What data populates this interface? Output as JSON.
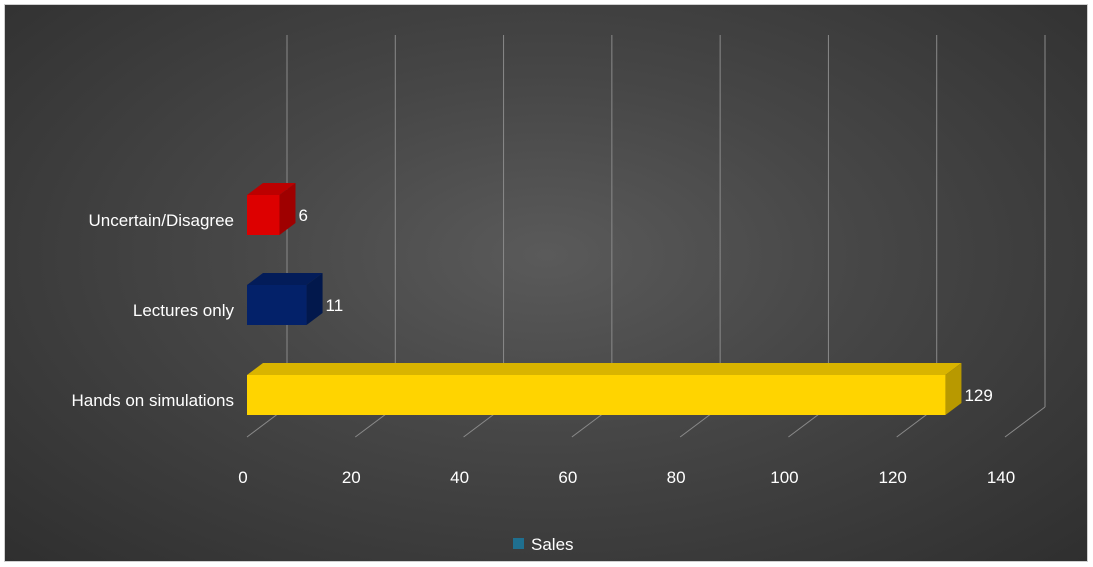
{
  "chart_data": {
    "type": "bar",
    "orientation": "horizontal",
    "categories": [
      "Hands on simulations",
      "Lectures only",
      "Uncertain/Disagree"
    ],
    "series": [
      {
        "name": "Sales",
        "values": [
          129,
          11,
          6
        ]
      }
    ],
    "xlim": [
      0,
      140
    ],
    "ticks": [
      "0",
      "20",
      "40",
      "60",
      "80",
      "100",
      "120",
      "140"
    ],
    "bar_colors": [
      "#ffd400",
      "#032169",
      "#dd0000"
    ],
    "legend_color": "#1f6f8f",
    "gridlines": true,
    "legend_position": "bottom",
    "data_labels": true
  }
}
